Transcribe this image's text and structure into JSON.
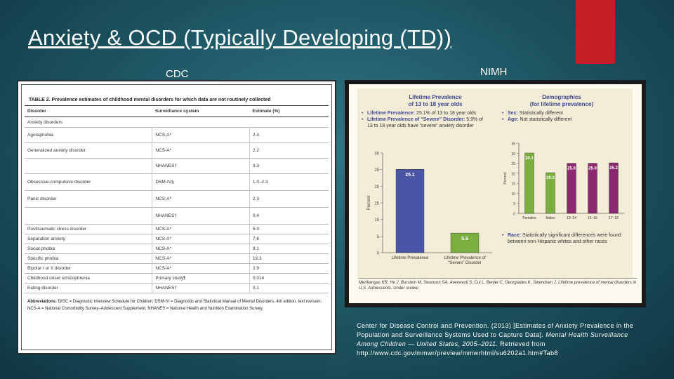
{
  "title": "Anxiety & OCD (Typically Developing (TD))",
  "cdc_label": "CDC",
  "nimh_label": "NIMH",
  "cdc_table": {
    "caption": "TABLE 2. Prevalence estimates of childhood mental disorders for which data are not routinely collected",
    "headers": [
      "Disorder",
      "Surveillance system",
      "Estimate (%)"
    ],
    "section": "Anxiety disorders",
    "rows": [
      {
        "disorder": "Agoraphobia",
        "system": "NCS-A*",
        "estimate": "2.4"
      },
      {
        "disorder": "Generalized anxiety disorder",
        "system": "NCS-A*",
        "estimate": "2.2"
      },
      {
        "disorder": "",
        "system": "NHANES†",
        "estimate": "0.3"
      },
      {
        "disorder": "Obsessive-compulsive disorder",
        "system": "DSM-IV§",
        "estimate": "1.0–2.3"
      },
      {
        "disorder": "Panic disorder",
        "system": "NCS-A*",
        "estimate": "2.3"
      },
      {
        "disorder": "",
        "system": "NHANES†",
        "estimate": "0.4"
      },
      {
        "disorder": "Posttraumatic stress disorder",
        "system": "NCS-A*",
        "estimate": "5.0"
      },
      {
        "disorder": "Separation anxiety",
        "system": "NCS-A*",
        "estimate": "7.6"
      },
      {
        "disorder": "Social phobia",
        "system": "NCS-A*",
        "estimate": "9.1"
      },
      {
        "disorder": "Specific phobia",
        "system": "NCS-A*",
        "estimate": "19.3"
      },
      {
        "disorder": "Bipolar I or II disorder",
        "system": "NCS-A*",
        "estimate": "2.9"
      },
      {
        "disorder": "Childhood onset schizophrenia",
        "system": "Primary study¶",
        "estimate": "0.014"
      },
      {
        "disorder": "Eating disorder",
        "system": "NHANES†",
        "estimate": "0.1"
      }
    ],
    "abbreviations_label": "Abbreviations:",
    "abbreviations_text": "DISC = Diagnostic Interview Schedule for Children; DSM-IV = Diagnostic and Statistical Manual of Mental Disorders, 4th edition, text revision; NCS-A = National Comorbidity Survey–Adolescent Supplement; NHANES = National Health and Nutrition Examination Survey."
  },
  "nimh": {
    "left_title": "Lifetime Prevalence\nof 13 to 18 year olds",
    "right_title": "Demographics\n(for lifetime prevalence)",
    "bullets_left": [
      {
        "label": "Lifetime Prevalence:",
        "text": "25.1% of 13 to 18 year olds"
      },
      {
        "label": "Lifetime Prevalence of “Severe” Disorder:",
        "text": "5.9% of 13 to 18 year olds have “severe” anxiety disorder"
      }
    ],
    "bullets_right": [
      {
        "label": "Sex:",
        "text": "Statistically different"
      },
      {
        "label": "Age:",
        "text": "Not statistically different"
      }
    ],
    "race_bullet": {
      "label": "Race:",
      "text": "Statistically significant differences were found between non-Hispanic whites and other races"
    },
    "footnote": "Merikangas KR, He J, Burstein M, Swanson SA, Avenevoli S, Cui L, Benjet C, Georgiades K, Swendsen J. Lifetime prevalence of mental disorders in U.S. Adolescents. Under review."
  },
  "chart_data": [
    {
      "type": "bar",
      "categories": [
        "Lifetime Prevalence",
        "Lifetime Prevalence of “Severe” Disorder"
      ],
      "values": [
        25.1,
        5.9
      ],
      "value_labels": [
        "25.1",
        "5.9"
      ],
      "colors": [
        "#4a55a6",
        "#7aae3e"
      ],
      "ylabel": "Percent",
      "ylim": [
        0,
        30
      ],
      "yticks": [
        "0",
        "5",
        "10",
        "15",
        "20",
        "25",
        "30"
      ]
    },
    {
      "type": "bar",
      "categories": [
        "Females",
        "Males",
        "13–14",
        "15–16",
        "17–18"
      ],
      "values": [
        30.1,
        20.3,
        25.0,
        25.0,
        25.2
      ],
      "value_labels": [
        "30.1",
        "20.3",
        "25.0",
        "25.0",
        "25.2"
      ],
      "colors": [
        "#7aae3e",
        "#7aae3e",
        "#8b2a6f",
        "#8b2a6f",
        "#8b2a6f"
      ],
      "ylabel": "Percent",
      "ylim": [
        0,
        35
      ],
      "yticks": [
        "0",
        "5",
        "10",
        "15",
        "20",
        "25",
        "30",
        "35"
      ]
    }
  ],
  "citation": {
    "line1": "Center for Disease Control and Prevention. (2013) [Estimates of Anxiety Prevalence in the Population and Surveillance Systems Used to Capture Data]. ",
    "italic": "Mental Health Surveillance Among Children — United States, 2005–2011.",
    "line2": " Retrieved from http://www.cdc.gov/mmwr/preview/mmwrhtml/su6202a1.htm#Tab8"
  }
}
